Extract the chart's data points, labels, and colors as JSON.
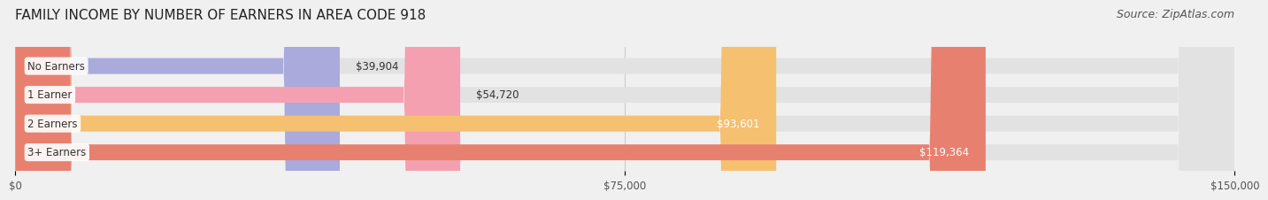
{
  "title": "FAMILY INCOME BY NUMBER OF EARNERS IN AREA CODE 918",
  "source": "Source: ZipAtlas.com",
  "categories": [
    "No Earners",
    "1 Earner",
    "2 Earners",
    "3+ Earners"
  ],
  "values": [
    39904,
    54720,
    93601,
    119364
  ],
  "labels": [
    "$39,904",
    "$54,720",
    "$93,601",
    "$119,364"
  ],
  "bar_colors": [
    "#aaaadd",
    "#f4a0b0",
    "#f5c070",
    "#e88070"
  ],
  "label_colors": [
    "#333333",
    "#333333",
    "#ffffff",
    "#ffffff"
  ],
  "xlim": [
    0,
    150000
  ],
  "xticks": [
    0,
    75000,
    150000
  ],
  "xticklabels": [
    "$0",
    "$75,000",
    "$150,000"
  ],
  "background_color": "#f0f0f0",
  "bar_background_color": "#e2e2e2",
  "title_fontsize": 11,
  "source_fontsize": 9,
  "bar_height": 0.55,
  "fig_width": 14.06,
  "fig_height": 2.33
}
